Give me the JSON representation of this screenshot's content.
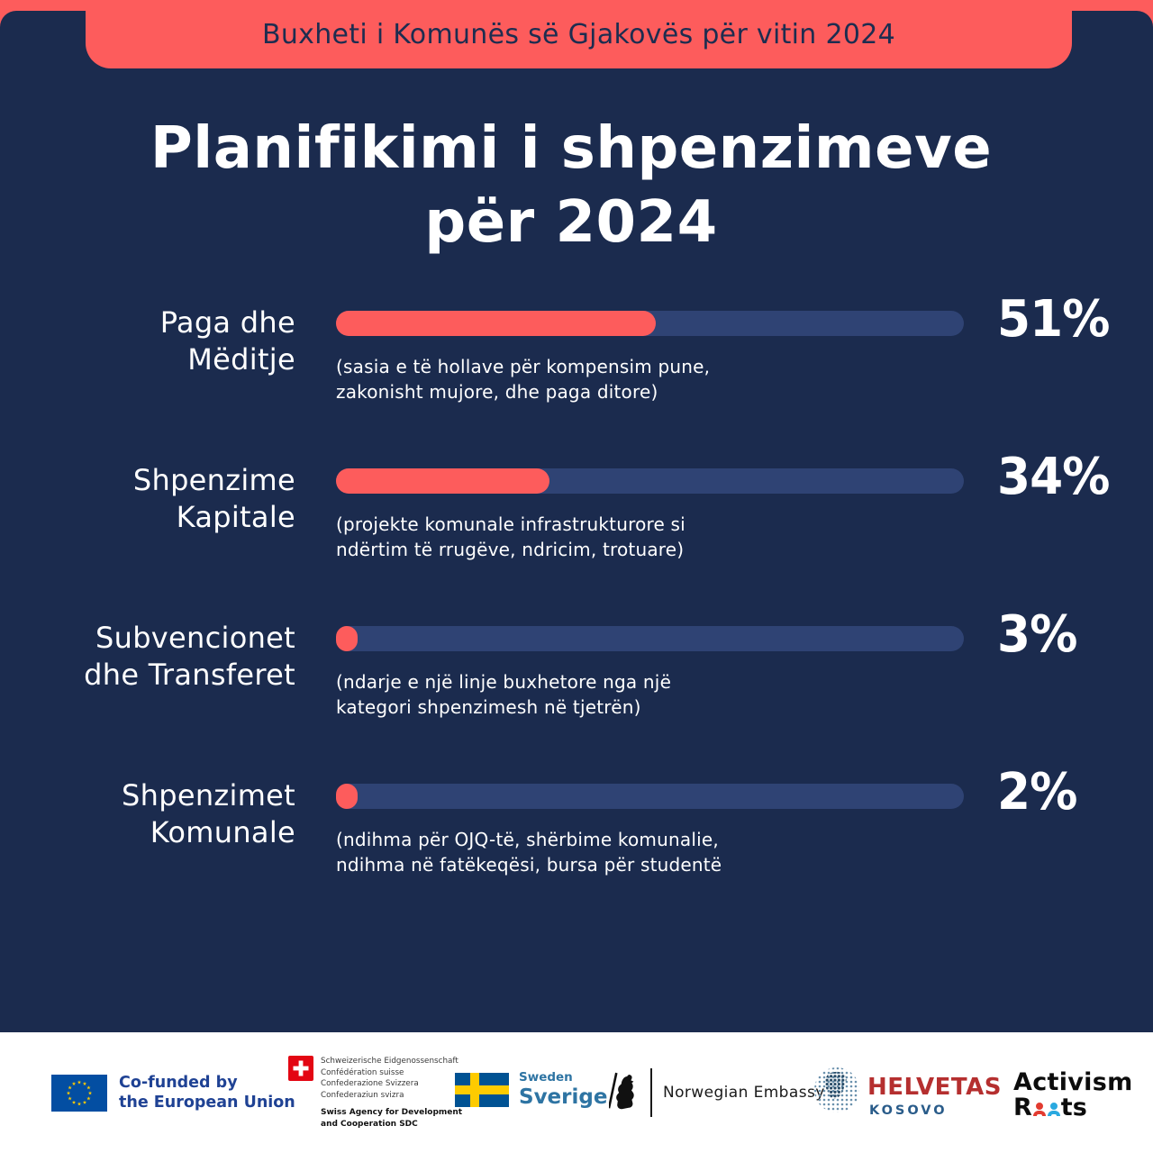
{
  "banner": {
    "text": "Buxheti i Komunës së Gjakovës për vitin 2024"
  },
  "title": {
    "line1": "Planifikimi i shpenzimeve",
    "line2": "për 2024"
  },
  "chart_data": {
    "type": "bar",
    "orientation": "horizontal",
    "title": "Planifikimi i shpenzimeve për 2024",
    "subtitle": "Buxheti i Komunës së Gjakovës për vitin 2024",
    "categories": [
      "Paga dhe Mëditje",
      "Shpenzime Kapitale",
      "Subvencionet dhe Transferet",
      "Shpenzimet Komunale"
    ],
    "values": [
      51,
      34,
      3,
      2
    ],
    "value_labels": [
      "51%",
      "34%",
      "3%",
      "2%"
    ],
    "unit": "percent",
    "xlim": [
      0,
      100
    ],
    "grid": false,
    "legend": false,
    "bar_color": "#fd5c5c",
    "track_color": "#2f4374",
    "annotations": [
      "(sasia e të hollave për kompensim pune, zakonisht mujore, dhe paga ditore)",
      "(projekte komunale infrastrukturore si ndërtim të rrugëve, ndricim, trotuare)",
      "(ndarje e një linje buxhetore nga një kategori shpenzimesh në tjetrën)",
      "(ndihma për OJQ-të, shërbime komunalie, ndihma në fatëkeqësi, bursa për studentë"
    ]
  },
  "rows": [
    {
      "label_line1": "Paga dhe",
      "label_line2": "Mëditje",
      "value": 51,
      "percent": "51%",
      "desc_line1": "(sasia e të hollave për kompensim pune,",
      "desc_line2": "zakonisht mujore, dhe paga ditore)"
    },
    {
      "label_line1": "Shpenzime",
      "label_line2": "Kapitale",
      "value": 34,
      "percent": "34%",
      "desc_line1": "(projekte komunale infrastrukturore si",
      "desc_line2": "ndërtim të rrugëve, ndricim, trotuare)"
    },
    {
      "label_line1": "Subvencionet",
      "label_line2": "dhe Transferet",
      "value": 3,
      "percent": "3%",
      "desc_line1": "(ndarje e një linje buxhetore nga një",
      "desc_line2": "kategori shpenzimesh në tjetrën)"
    },
    {
      "label_line1": "Shpenzimet",
      "label_line2": "Komunale",
      "value": 2,
      "percent": "2%",
      "desc_line1": "(ndihma për OJQ-të, shërbime komunalie,",
      "desc_line2": "ndihma në fatëkeqësi, bursa për studentë"
    }
  ],
  "footer": {
    "eu": {
      "line1": "Co-funded by",
      "line2": "the European Union"
    },
    "swiss": {
      "line1": "Schweizerische Eidgenossenschaft",
      "line2": "Confédération suisse",
      "line3": "Confederazione Svizzera",
      "line4": "Confederaziun svizra",
      "bold1": "Swiss Agency for Development",
      "bold2": "and Cooperation SDC"
    },
    "sweden": {
      "line1": "Sweden",
      "line2": "Sverige"
    },
    "norway": {
      "label": "Norwegian Embassy"
    },
    "helvetas": {
      "name": "HELVETAS",
      "sub": "KOSOVO"
    },
    "activism": {
      "line1": "Activism",
      "r": "R",
      "ts": "ts"
    }
  },
  "colors": {
    "coral": "#fd5c5c",
    "navy_background": "#1b2b4e",
    "bar_track": "#2f4374",
    "text_white": "#ffffff",
    "eu_flag_blue": "#034ea2",
    "eu_star_yellow": "#ffcc00",
    "eu_text_blue": "#1f4294",
    "swiss_red": "#e30613",
    "sweden_flag_blue": "#005293",
    "sweden_cross_yellow": "#fecb00",
    "sweden_text_blue": "#2e74a3",
    "helvetas_red": "#b52f2f",
    "kosovo_blue": "#2a5c8a",
    "roots_red": "#e23b30",
    "roots_blue": "#2aa9e0"
  }
}
